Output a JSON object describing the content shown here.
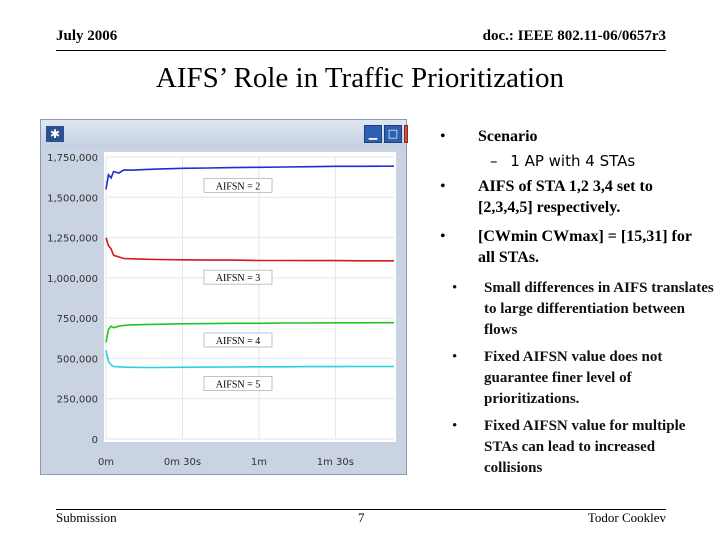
{
  "header": {
    "date": "July 2006",
    "doc": "doc.: IEEE 802.11-06/0657r3"
  },
  "title": "AIFS’ Role in Traffic Prioritization",
  "window": {
    "icon": "star-icon",
    "buttons": [
      "minimize-icon",
      "maximize-icon",
      "close-icon"
    ]
  },
  "chart_data": {
    "type": "line",
    "title": "",
    "xlabel": "",
    "ylabel": "",
    "x_ticks": [
      "0m",
      "0m 30s",
      "1m",
      "1m 30s"
    ],
    "x_tick_seconds": [
      0,
      30,
      60,
      90
    ],
    "xlim": [
      0,
      113
    ],
    "y_ticks": [
      "1,750,000",
      "1,500,000",
      "1,250,000",
      "1,000,000",
      "750,000",
      "500,000",
      "250,000",
      "0"
    ],
    "ylim": [
      0,
      1750000
    ],
    "grid": true,
    "series": [
      {
        "name": "AIFSN = 2",
        "color": "#1a2fd6",
        "x": [
          0,
          1,
          2,
          3,
          5,
          7,
          10,
          15,
          20,
          30,
          40,
          50,
          60,
          70,
          80,
          90,
          100,
          113
        ],
        "y": [
          1550000,
          1640000,
          1620000,
          1660000,
          1650000,
          1670000,
          1668000,
          1672000,
          1675000,
          1680000,
          1682000,
          1684000,
          1686000,
          1688000,
          1690000,
          1692000,
          1692000,
          1693000
        ]
      },
      {
        "name": "AIFSN = 3",
        "color": "#d61a1a",
        "x": [
          0,
          1,
          2,
          3,
          5,
          7,
          10,
          15,
          20,
          30,
          40,
          50,
          60,
          70,
          80,
          90,
          100,
          113
        ],
        "y": [
          1250000,
          1200000,
          1180000,
          1140000,
          1130000,
          1120000,
          1118000,
          1116000,
          1114000,
          1112000,
          1110000,
          1110000,
          1108000,
          1108000,
          1107000,
          1107000,
          1106000,
          1106000
        ]
      },
      {
        "name": "AIFSN = 4",
        "color": "#22c422",
        "x": [
          0,
          1,
          2,
          3,
          5,
          7,
          10,
          15,
          20,
          30,
          40,
          50,
          60,
          70,
          80,
          90,
          100,
          113
        ],
        "y": [
          600000,
          680000,
          700000,
          690000,
          700000,
          705000,
          708000,
          710000,
          712000,
          715000,
          716000,
          718000,
          718000,
          720000,
          720000,
          721000,
          721000,
          722000
        ]
      },
      {
        "name": "AIFSN = 5",
        "color": "#29d0e0",
        "x": [
          0,
          1,
          2,
          3,
          5,
          7,
          10,
          15,
          20,
          30,
          40,
          50,
          60,
          70,
          80,
          90,
          100,
          113
        ],
        "y": [
          550000,
          480000,
          460000,
          450000,
          448000,
          446000,
          445000,
          444000,
          444000,
          445000,
          446000,
          447000,
          448000,
          448000,
          449000,
          449000,
          450000,
          450000
        ]
      }
    ]
  },
  "bullets": {
    "scenario": "Scenario",
    "scenario_sub": "1 AP with 4 STAs",
    "aifs": "AIFS of STA 1,2 3,4 set to [2,3,4,5] respectively.",
    "cw": "[CWmin CWmax] = [15,31] for all STAs.",
    "p1": "Small differences in AIFS translates to large differentiation between flows",
    "p2": "Fixed AIFSN value does not guarantee finer level of prioritizations.",
    "p3": "Fixed AIFSN value for multiple STAs can lead to increased collisions",
    "bullet_glyph": "•",
    "dash_glyph": "–"
  },
  "footer": {
    "left": "Submission",
    "page": "7",
    "author": "Todor Cooklev"
  }
}
